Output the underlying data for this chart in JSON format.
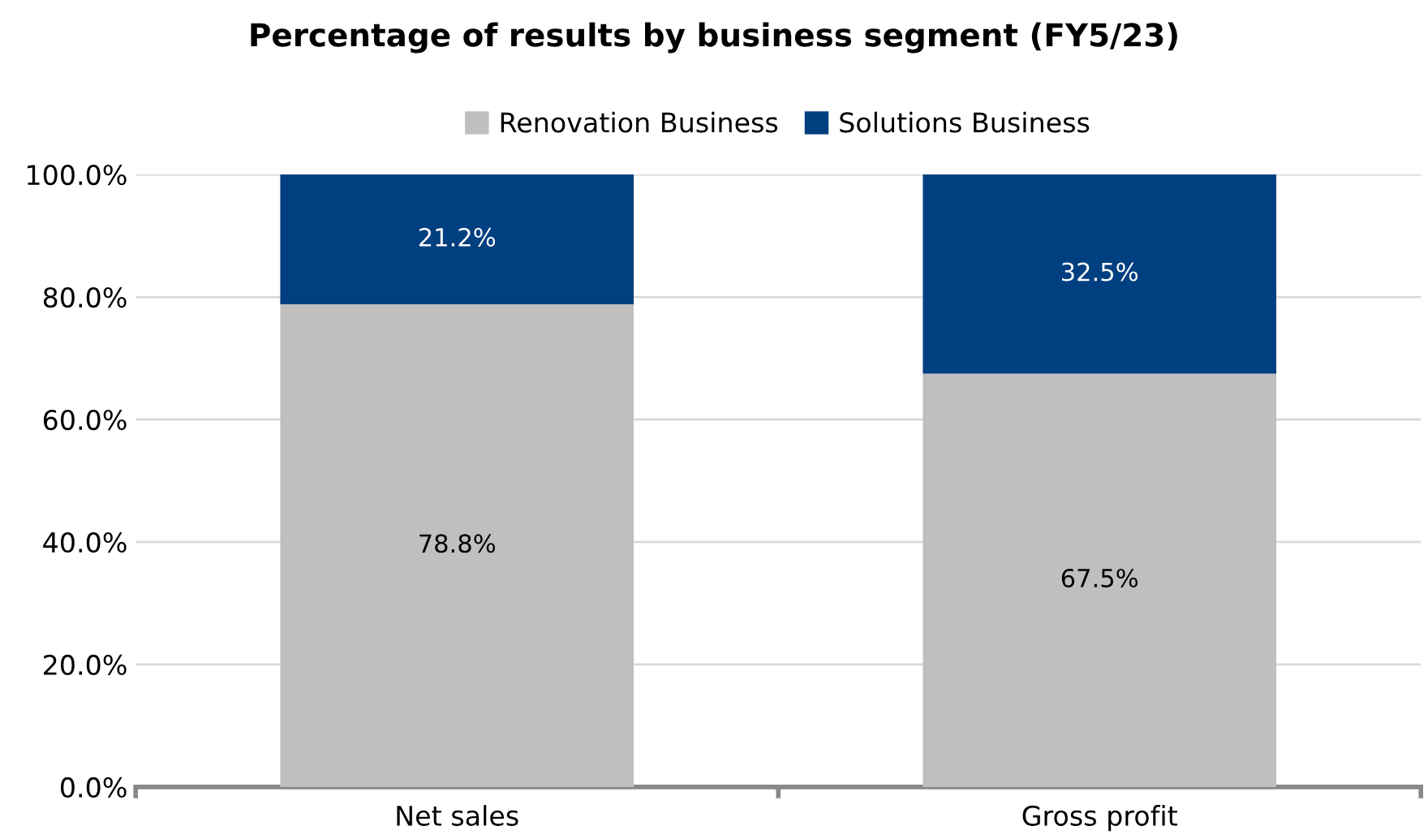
{
  "chart_data": {
    "type": "bar",
    "title": "Percentage of results by business segment (FY5/23)",
    "categories": [
      "Net sales",
      "Gross profit"
    ],
    "stacked": true,
    "series": [
      {
        "name": "Renovation Business",
        "color": "#bfbfbf",
        "values": [
          78.8,
          67.5
        ],
        "value_labels": [
          "78.8%",
          "67.5%"
        ]
      },
      {
        "name": "Solutions Business",
        "color": "#003f80",
        "values": [
          21.2,
          32.5
        ],
        "value_labels": [
          "21.2%",
          "32.5%"
        ]
      }
    ],
    "ylim": [
      0,
      100
    ],
    "yticks": [
      {
        "value": 0,
        "label": "0.0%"
      },
      {
        "value": 20,
        "label": "20.0%"
      },
      {
        "value": 40,
        "label": "40.0%"
      },
      {
        "value": 60,
        "label": "60.0%"
      },
      {
        "value": 80,
        "label": "80.0%"
      },
      {
        "value": 100,
        "label": "100.0%"
      }
    ],
    "grid": "y",
    "legend": "top"
  }
}
